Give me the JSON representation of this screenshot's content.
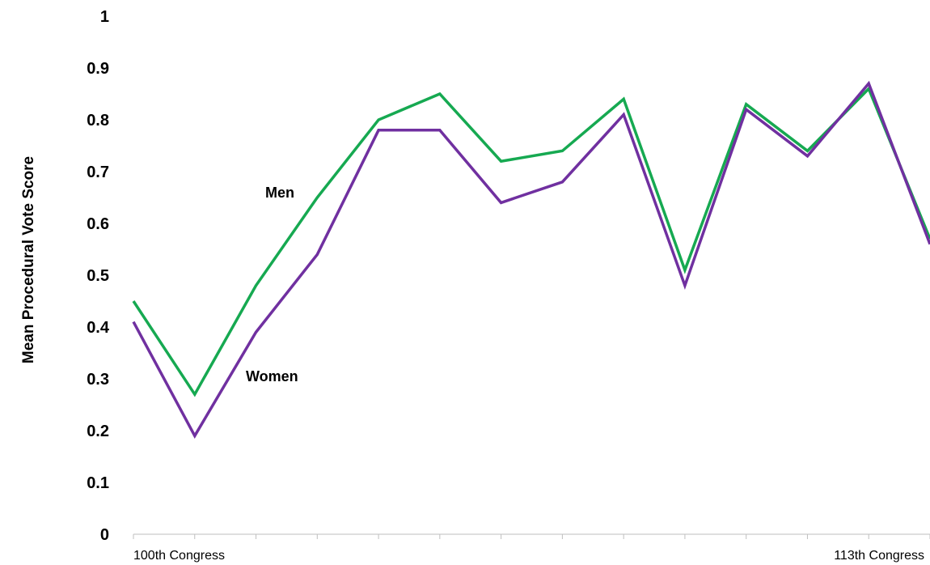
{
  "chart_data": {
    "type": "line",
    "title": "",
    "xlabel": "",
    "ylabel": "Mean Procedural Vote Score",
    "ylim": [
      0,
      1
    ],
    "yticks": [
      "0",
      "0.1",
      "0.2",
      "0.3",
      "0.4",
      "0.5",
      "0.6",
      "0.7",
      "0.8",
      "0.9",
      "1"
    ],
    "x_tick_labels": [
      {
        "index": 1,
        "label": "100th Congress"
      },
      {
        "index": 14,
        "label": "113th Congress"
      }
    ],
    "grid": false,
    "legend": "inline labels",
    "series": [
      {
        "name": "Men",
        "color": "#16a951",
        "values": [
          0.45,
          0.27,
          0.48,
          0.65,
          0.8,
          0.85,
          0.72,
          0.74,
          0.84,
          0.51,
          0.83,
          0.74,
          0.86,
          0.57
        ]
      },
      {
        "name": "Women",
        "color": "#7030a0",
        "values": [
          0.41,
          0.19,
          0.39,
          0.54,
          0.78,
          0.78,
          0.64,
          0.68,
          0.81,
          0.48,
          0.82,
          0.73,
          0.87,
          0.56
        ]
      }
    ]
  }
}
